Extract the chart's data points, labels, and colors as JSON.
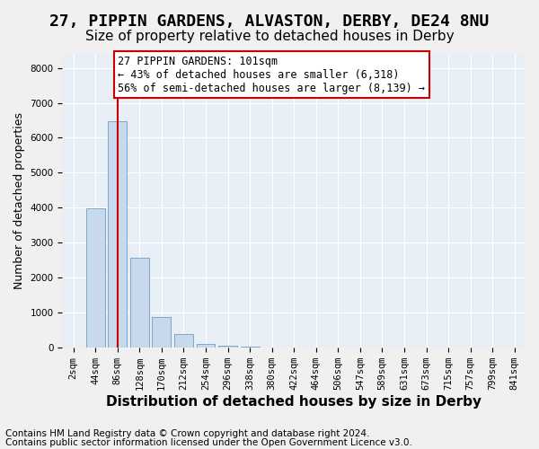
{
  "title_line1": "27, PIPPIN GARDENS, ALVASTON, DERBY, DE24 8NU",
  "title_line2": "Size of property relative to detached houses in Derby",
  "xlabel": "Distribution of detached houses by size in Derby",
  "ylabel": "Number of detached properties",
  "bin_labels": [
    "2sqm",
    "44sqm",
    "86sqm",
    "128sqm",
    "170sqm",
    "212sqm",
    "254sqm",
    "296sqm",
    "338sqm",
    "380sqm",
    "422sqm",
    "464sqm",
    "506sqm",
    "547sqm",
    "589sqm",
    "631sqm",
    "673sqm",
    "715sqm",
    "757sqm",
    "799sqm",
    "841sqm"
  ],
  "bar_values": [
    5,
    3980,
    6480,
    2580,
    880,
    400,
    120,
    55,
    20,
    5,
    2,
    0,
    0,
    0,
    0,
    0,
    0,
    0,
    0,
    0,
    0
  ],
  "bar_color": "#c9d9ed",
  "bar_edge_color": "#7ba7cc",
  "property_sqm": 101,
  "property_bin_index": 2,
  "red_line_color": "#cc0000",
  "annotation_text": "27 PIPPIN GARDENS: 101sqm\n← 43% of detached houses are smaller (6,318)\n56% of semi-detached houses are larger (8,139) →",
  "annotation_box_color": "#ffffff",
  "annotation_box_edge_color": "#cc0000",
  "ylim": [
    0,
    8400
  ],
  "background_color": "#e8eef5",
  "footer_line1": "Contains HM Land Registry data © Crown copyright and database right 2024.",
  "footer_line2": "Contains public sector information licensed under the Open Government Licence v3.0.",
  "grid_color": "#ffffff",
  "title1_fontsize": 13,
  "title2_fontsize": 11,
  "xlabel_fontsize": 11,
  "ylabel_fontsize": 9,
  "tick_fontsize": 7.5,
  "footer_fontsize": 7.5,
  "annotation_fontsize": 8.5
}
